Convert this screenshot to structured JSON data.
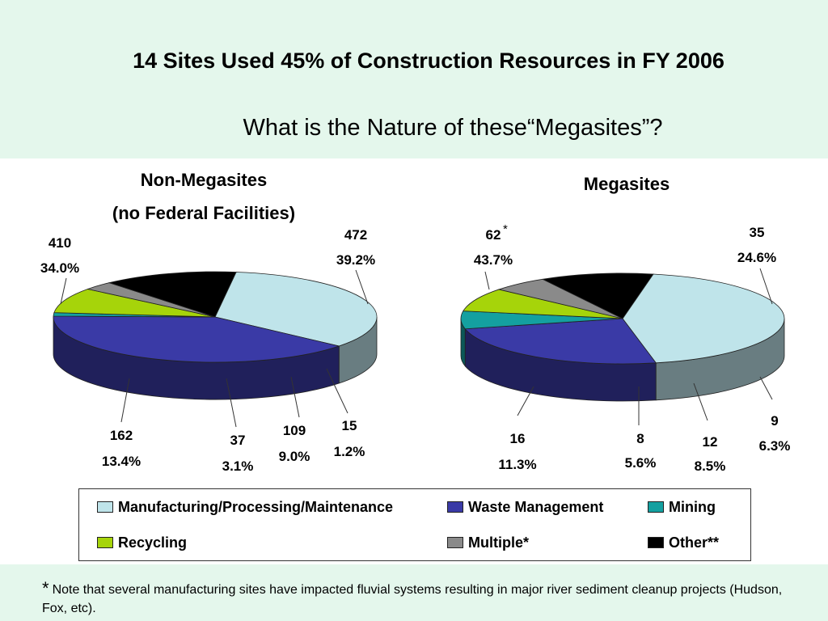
{
  "header": {
    "title": "14 Sites Used 45% of Construction Resources in FY 2006",
    "subtitle": "What is the Nature of these“Megasites”?"
  },
  "colors": {
    "header_bg": "#e4f7ec",
    "Manufacturing/Processing/Maintenance": "#bfe4ea",
    "Waste Management": "#3a3aa6",
    "Mining": "#14a0a0",
    "Recycling": "#a6d40a",
    "Multiple*": "#8a8a8a",
    "Other**": "#000000"
  },
  "legend": {
    "items": [
      {
        "label": "Manufacturing/Processing/Maintenance",
        "color": "#bfe4ea"
      },
      {
        "label": "Waste Management",
        "color": "#3a3aa6"
      },
      {
        "label": "Mining",
        "color": "#14a0a0"
      },
      {
        "label": "Recycling",
        "color": "#a6d40a"
      },
      {
        "label": "Multiple*",
        "color": "#8a8a8a"
      },
      {
        "label": "Other**",
        "color": "#000000"
      }
    ]
  },
  "chart_data": [
    {
      "type": "pie",
      "title_line1": "Non-Megasites",
      "title_line2": "(no Federal Facilities)",
      "slices": [
        {
          "category": "Manufacturing/Processing/Maintenance",
          "value": 410,
          "value_label": "410",
          "percent_label": "34.0%"
        },
        {
          "category": "Waste Management",
          "value": 472,
          "value_label": "472",
          "percent_label": "39.2%"
        },
        {
          "category": "Mining",
          "value": 15,
          "value_label": "15",
          "percent_label": "1.2%"
        },
        {
          "category": "Recycling",
          "value": 109,
          "value_label": "109",
          "percent_label": "9.0%"
        },
        {
          "category": "Multiple*",
          "value": 37,
          "value_label": "37",
          "percent_label": "3.1%"
        },
        {
          "category": "Other**",
          "value": 162,
          "value_label": "162",
          "percent_label": "13.4%"
        }
      ]
    },
    {
      "type": "pie",
      "title_line1": "Megasites",
      "title_line2": "",
      "slices": [
        {
          "category": "Manufacturing/Processing/Maintenance",
          "value": 62,
          "value_label": "62",
          "value_note": "*",
          "percent_label": "43.7%"
        },
        {
          "category": "Waste Management",
          "value": 35,
          "value_label": "35",
          "percent_label": "24.6%"
        },
        {
          "category": "Mining",
          "value": 9,
          "value_label": "9",
          "percent_label": "6.3%"
        },
        {
          "category": "Recycling",
          "value": 12,
          "value_label": "12",
          "percent_label": "8.5%"
        },
        {
          "category": "Multiple*",
          "value": 8,
          "value_label": "8",
          "percent_label": "5.6%"
        },
        {
          "category": "Other**",
          "value": 16,
          "value_label": "16",
          "percent_label": "11.3%"
        }
      ]
    }
  ],
  "footnote": {
    "marker": "*",
    "text": "Note that several manufacturing sites have impacted fluvial systems resulting in major river sediment cleanup projects (Hudson, Fox, etc)."
  }
}
